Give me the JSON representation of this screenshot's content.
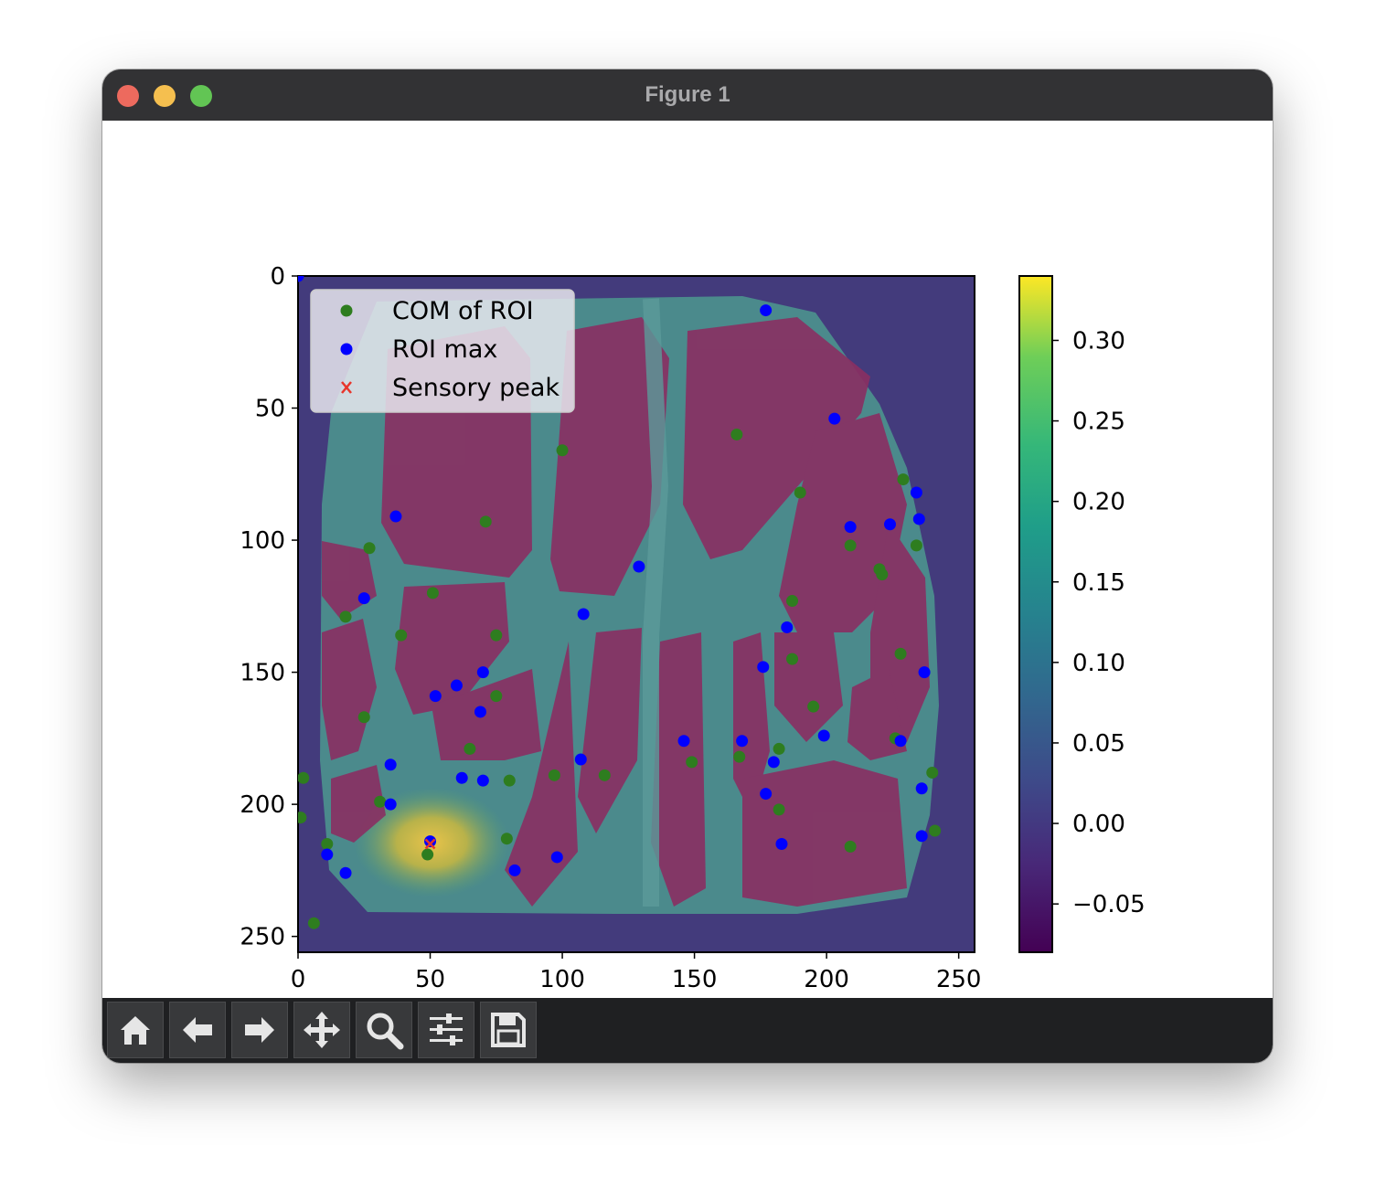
{
  "window": {
    "title": "Figure 1"
  },
  "toolbar": {
    "buttons": [
      {
        "icon": "home-icon"
      },
      {
        "icon": "arrow-left-icon"
      },
      {
        "icon": "arrow-right-icon"
      },
      {
        "icon": "move-icon"
      },
      {
        "icon": "zoom-icon"
      },
      {
        "icon": "sliders-icon"
      },
      {
        "icon": "save-icon"
      }
    ]
  },
  "chart_data": {
    "type": "scatter",
    "title": "",
    "xlabel": "",
    "ylabel": "",
    "xlim": [
      0,
      256
    ],
    "ylim": [
      256,
      0
    ],
    "xticks": [
      "0",
      "50",
      "100",
      "150",
      "200",
      "250"
    ],
    "yticks": [
      "0",
      "50",
      "100",
      "150",
      "200",
      "250"
    ],
    "xtick_values": [
      0,
      50,
      100,
      150,
      200,
      250
    ],
    "ytick_values": [
      0,
      50,
      100,
      150,
      200,
      250
    ],
    "background": "image",
    "colormap": "viridis",
    "colorbar": {
      "min": -0.08,
      "max": 0.34,
      "ticks": [
        "−0.05",
        "0.00",
        "0.05",
        "0.10",
        "0.15",
        "0.20",
        "0.25",
        "0.30"
      ],
      "tick_values": [
        -0.05,
        0.0,
        0.05,
        0.1,
        0.15,
        0.2,
        0.25,
        0.3
      ]
    },
    "legend": {
      "position": "upper-left",
      "entries": [
        "COM of ROI",
        "ROI max",
        "Sensory peak"
      ]
    },
    "series": [
      {
        "name": "COM of ROI",
        "marker": "circle",
        "color": "#2e7d1f",
        "points": [
          [
            100,
            66
          ],
          [
            166,
            60
          ],
          [
            190,
            82
          ],
          [
            71,
            93
          ],
          [
            27,
            103
          ],
          [
            229,
            77
          ],
          [
            234,
            102
          ],
          [
            209,
            102
          ],
          [
            220,
            111
          ],
          [
            221,
            113
          ],
          [
            51,
            120
          ],
          [
            187,
            123
          ],
          [
            18,
            129
          ],
          [
            39,
            136
          ],
          [
            75,
            136
          ],
          [
            228,
            143
          ],
          [
            187,
            145
          ],
          [
            75,
            159
          ],
          [
            195,
            163
          ],
          [
            25,
            167
          ],
          [
            65,
            179
          ],
          [
            182,
            179
          ],
          [
            149,
            184
          ],
          [
            167,
            182
          ],
          [
            226,
            175
          ],
          [
            2,
            190
          ],
          [
            240,
            188
          ],
          [
            80,
            191
          ],
          [
            97,
            189
          ],
          [
            116,
            189
          ],
          [
            31,
            199
          ],
          [
            182,
            202
          ],
          [
            1,
            205
          ],
          [
            11,
            215
          ],
          [
            79,
            213
          ],
          [
            49,
            219
          ],
          [
            209,
            216
          ],
          [
            241,
            210
          ],
          [
            6,
            245
          ]
        ]
      },
      {
        "name": "ROI max",
        "marker": "circle",
        "color": "#0000ff",
        "points": [
          [
            0,
            0
          ],
          [
            177,
            13
          ],
          [
            203,
            54
          ],
          [
            234,
            82
          ],
          [
            37,
            91
          ],
          [
            209,
            95
          ],
          [
            224,
            94
          ],
          [
            235,
            92
          ],
          [
            129,
            110
          ],
          [
            25,
            122
          ],
          [
            108,
            128
          ],
          [
            185,
            133
          ],
          [
            70,
            150
          ],
          [
            60,
            155
          ],
          [
            52,
            159
          ],
          [
            176,
            148
          ],
          [
            237,
            150
          ],
          [
            69,
            165
          ],
          [
            146,
            176
          ],
          [
            168,
            176
          ],
          [
            199,
            174
          ],
          [
            228,
            176
          ],
          [
            35,
            185
          ],
          [
            107,
            183
          ],
          [
            180,
            184
          ],
          [
            62,
            190
          ],
          [
            70,
            191
          ],
          [
            236,
            194
          ],
          [
            35,
            200
          ],
          [
            177,
            196
          ],
          [
            11,
            219
          ],
          [
            50,
            214
          ],
          [
            98,
            220
          ],
          [
            183,
            215
          ],
          [
            236,
            212
          ],
          [
            18,
            226
          ],
          [
            82,
            225
          ]
        ]
      },
      {
        "name": "Sensory peak",
        "marker": "x",
        "color": "#e8352b",
        "points": [
          [
            50,
            215
          ]
        ]
      }
    ]
  }
}
